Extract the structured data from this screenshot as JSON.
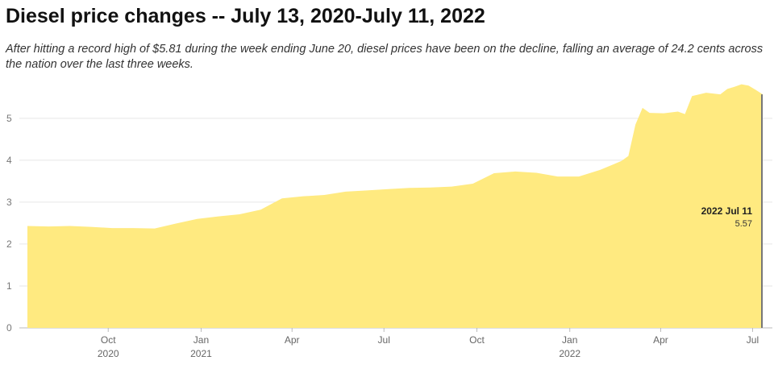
{
  "chart_data": {
    "type": "area",
    "title": "Diesel price changes -- July 13, 2020-July 11, 2022",
    "subtitle": "After hitting a record high of $5.81 during the week ending June 20, diesel prices have been on the decline, falling an average of 24.2 cents across the nation over the last three weeks.",
    "xlabel": "",
    "ylabel": "",
    "ylim": [
      0,
      5.9
    ],
    "y_ticks": [
      "0",
      "1",
      "2",
      "3",
      "4",
      "5"
    ],
    "x_ticks": [
      {
        "label": "Oct",
        "year": "2020",
        "date": "2020-10-01"
      },
      {
        "label": "Jan",
        "year": "2021",
        "date": "2021-01-01"
      },
      {
        "label": "Apr",
        "year": "",
        "date": "2021-04-01"
      },
      {
        "label": "Jul",
        "year": "",
        "date": "2021-07-01"
      },
      {
        "label": "Oct",
        "year": "",
        "date": "2021-10-01"
      },
      {
        "label": "Jan",
        "year": "2022",
        "date": "2022-01-01"
      },
      {
        "label": "Apr",
        "year": "",
        "date": "2022-04-01"
      },
      {
        "label": "Jul",
        "year": "",
        "date": "2022-07-01"
      }
    ],
    "grid": true,
    "color": "#ffea80",
    "series": [
      {
        "x": [
          "2020-07-13",
          "2020-08-03",
          "2020-08-24",
          "2020-09-14",
          "2020-10-05",
          "2020-10-26",
          "2020-11-16",
          "2020-12-07",
          "2020-12-28",
          "2021-01-18",
          "2021-02-08",
          "2021-03-01",
          "2021-03-22",
          "2021-04-12",
          "2021-05-03",
          "2021-05-24",
          "2021-06-14",
          "2021-07-05",
          "2021-07-26",
          "2021-08-16",
          "2021-09-06",
          "2021-09-27",
          "2021-10-18",
          "2021-11-08",
          "2021-11-29",
          "2021-12-20",
          "2022-01-10",
          "2022-01-31",
          "2022-02-21",
          "2022-02-28",
          "2022-03-07",
          "2022-03-14",
          "2022-03-21",
          "2022-04-04",
          "2022-04-18",
          "2022-04-25",
          "2022-05-02",
          "2022-05-16",
          "2022-05-30",
          "2022-06-06",
          "2022-06-13",
          "2022-06-20",
          "2022-06-27",
          "2022-07-04",
          "2022-07-11"
        ],
        "values": [
          2.43,
          2.42,
          2.43,
          2.41,
          2.38,
          2.38,
          2.37,
          2.49,
          2.6,
          2.66,
          2.71,
          2.82,
          3.09,
          3.14,
          3.17,
          3.25,
          3.28,
          3.31,
          3.34,
          3.35,
          3.37,
          3.44,
          3.69,
          3.73,
          3.7,
          3.61,
          3.61,
          3.77,
          3.98,
          4.1,
          4.85,
          5.25,
          5.13,
          5.12,
          5.16,
          5.1,
          5.53,
          5.61,
          5.57,
          5.7,
          5.75,
          5.81,
          5.78,
          5.68,
          5.57
        ]
      }
    ],
    "annotation": {
      "date": "2022 Jul 11",
      "value": "5.57"
    }
  }
}
